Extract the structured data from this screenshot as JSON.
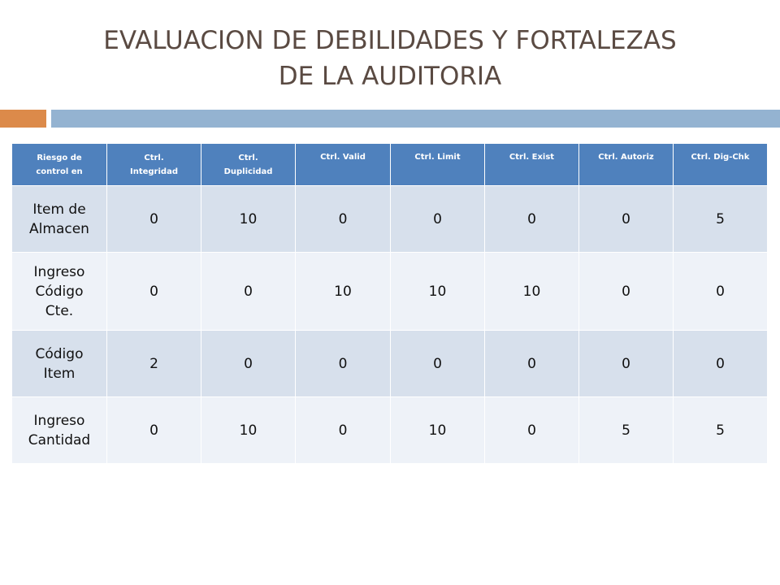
{
  "slide": {
    "title_line1": "EVALUACION DE DEBILIDADES Y FORTALEZAS",
    "title_line2": "DE LA AUDITORIA"
  },
  "table": {
    "headers": [
      [
        "Riesgo de",
        "control en"
      ],
      [
        "Ctrl.",
        "Integridad"
      ],
      [
        "Ctrl.",
        "Duplicidad"
      ],
      [
        "Ctrl. Valid"
      ],
      [
        "Ctrl. Limit"
      ],
      [
        "Ctrl. Exist"
      ],
      [
        "Ctrl. Autoriz"
      ],
      [
        "Ctrl. Dig-Chk"
      ]
    ],
    "rows": [
      {
        "label": [
          "Item de",
          "Almacen"
        ],
        "values": [
          "0",
          "10",
          "0",
          "0",
          "0",
          "0",
          "5"
        ]
      },
      {
        "label": [
          "Ingreso",
          "Código",
          "Cte."
        ],
        "values": [
          "0",
          "0",
          "10",
          "10",
          "10",
          "0",
          "0"
        ]
      },
      {
        "label": [
          "Código",
          "Item"
        ],
        "values": [
          "2",
          "0",
          "0",
          "0",
          "0",
          "0",
          "0"
        ]
      },
      {
        "label": [
          "Ingreso",
          "Cantidad"
        ],
        "values": [
          "0",
          "10",
          "0",
          "10",
          "0",
          "5",
          "5"
        ]
      }
    ]
  }
}
